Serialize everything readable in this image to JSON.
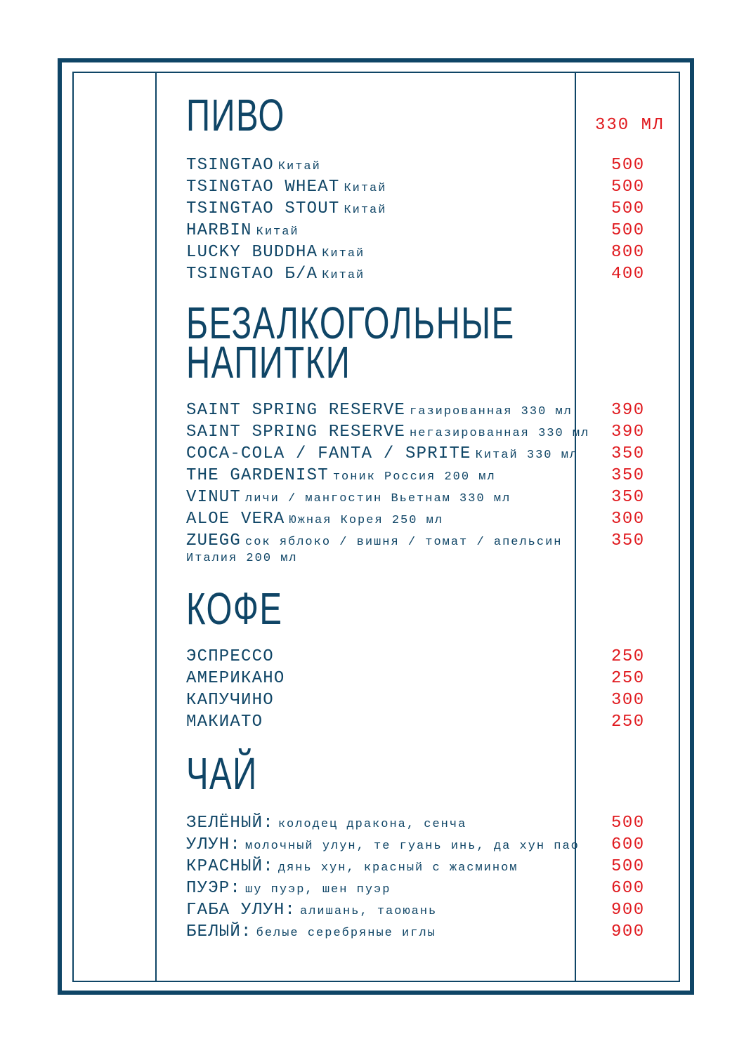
{
  "colors": {
    "primary": "#0f4566",
    "price": "#e0191e"
  },
  "sections": [
    {
      "title_lines": [
        "ПИВО"
      ],
      "unit": "330 МЛ",
      "items": [
        {
          "name": "TSINGTAO",
          "desc": "Китай",
          "price": "500"
        },
        {
          "name": "TSINGTAO WHEAT",
          "desc": "Китай",
          "price": "500"
        },
        {
          "name": "TSINGTAO STOUT",
          "desc": "Китай",
          "price": "500"
        },
        {
          "name": "HARBIN",
          "desc": "Китай",
          "price": "500"
        },
        {
          "name": "LUCKY BUDDHA",
          "desc": "Китай",
          "price": "800"
        },
        {
          "name": "TSINGTAO Б/А",
          "desc": "Китай",
          "price": "400"
        }
      ]
    },
    {
      "title_lines": [
        "БЕЗАЛКОГОЛЬНЫЕ",
        "НАПИТКИ"
      ],
      "items": [
        {
          "name": "SAINT SPRING RESERVE",
          "desc": "газированная 330 мл",
          "price": "390"
        },
        {
          "name": "SAINT SPRING RESERVE",
          "desc": "негазированная 330 мл",
          "price": "390"
        },
        {
          "name": "COCA-COLA / FANTA / SPRITE",
          "desc": "Китай 330 мл",
          "price": "350"
        },
        {
          "name": "THE GARDENIST",
          "desc": "тоник Россия 200 мл",
          "price": "350"
        },
        {
          "name": "VINUT",
          "desc": "личи / мангостин Вьетнам 330 мл",
          "price": "350"
        },
        {
          "name": "ALOE VERA",
          "desc": "Южная Корея 250 мл",
          "price": "300"
        },
        {
          "name": "ZUEGG",
          "desc": "сок яблоко / вишня / томат / апельсин",
          "extra": "Италия 200 мл",
          "price": "350"
        }
      ]
    },
    {
      "title_lines": [
        "КОФЕ"
      ],
      "items": [
        {
          "name": "ЭСПРЕССО",
          "desc": "",
          "price": "250"
        },
        {
          "name": "АМЕРИКАНО",
          "desc": "",
          "price": "250"
        },
        {
          "name": "КАПУЧИНО",
          "desc": "",
          "price": "300"
        },
        {
          "name": "МАКИАТО",
          "desc": "",
          "price": "250"
        }
      ]
    },
    {
      "title_lines": [
        "ЧАЙ"
      ],
      "items": [
        {
          "name": "ЗЕЛЁНЫЙ:",
          "desc": "колодец дракона, сенча",
          "price": "500"
        },
        {
          "name": "УЛУН:",
          "desc": "молочный улун, те гуань инь, да хун пао",
          "price": "600"
        },
        {
          "name": "КРАСНЫЙ:",
          "desc": "дянь хун, красный с жасмином",
          "price": "500"
        },
        {
          "name": "ПУЭР:",
          "desc": "шу пуэр, шен пуэр",
          "price": "600"
        },
        {
          "name": "ГАБА УЛУН:",
          "desc": "алишань, таоюань",
          "price": "900"
        },
        {
          "name": "БЕЛЫЙ:",
          "desc": "белые серебряные иглы",
          "price": "900"
        }
      ]
    }
  ]
}
